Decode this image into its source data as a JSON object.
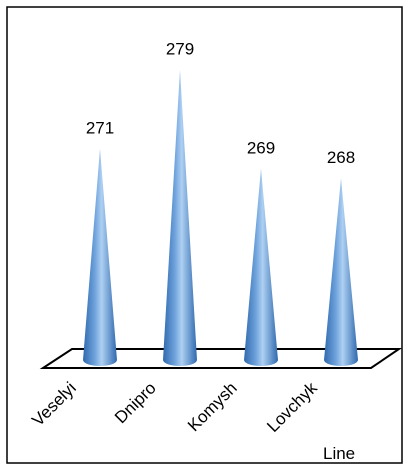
{
  "chart_data": {
    "type": "bar",
    "bar_shape": "cone",
    "categories": [
      "Veselyi",
      "Dnipro",
      "Komysh",
      "Lovchyk"
    ],
    "values": [
      271,
      279,
      269,
      268
    ],
    "xlabel": "Line",
    "ylabel": "",
    "title": "",
    "data_labels": true,
    "grid": false,
    "legend": "none",
    "colors": {
      "cone_light": "#aed0f2",
      "cone_mid": "#6fa3dc",
      "cone_dark": "#2f69ae",
      "floor_stroke": "#000000",
      "border": "#000000"
    }
  }
}
